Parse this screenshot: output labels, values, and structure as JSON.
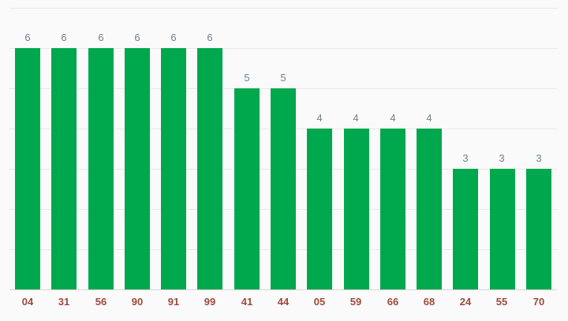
{
  "chart_data": {
    "type": "bar",
    "categories": [
      "04",
      "31",
      "56",
      "90",
      "91",
      "99",
      "41",
      "44",
      "05",
      "59",
      "66",
      "68",
      "24",
      "55",
      "70"
    ],
    "values": [
      6,
      6,
      6,
      6,
      6,
      6,
      5,
      5,
      4,
      4,
      4,
      4,
      3,
      3,
      3
    ],
    "ylim": [
      0,
      7
    ],
    "grid": true,
    "grid_step": 1,
    "legend": "none",
    "bar_orientation": "vertical",
    "colors": {
      "bar": "#00a84d",
      "annotation": "#6d8294",
      "x_label": "#9d4b3b",
      "gridline": "#e8e8e8",
      "baseline": "#d6d6d6",
      "background": "#fafafa"
    }
  }
}
